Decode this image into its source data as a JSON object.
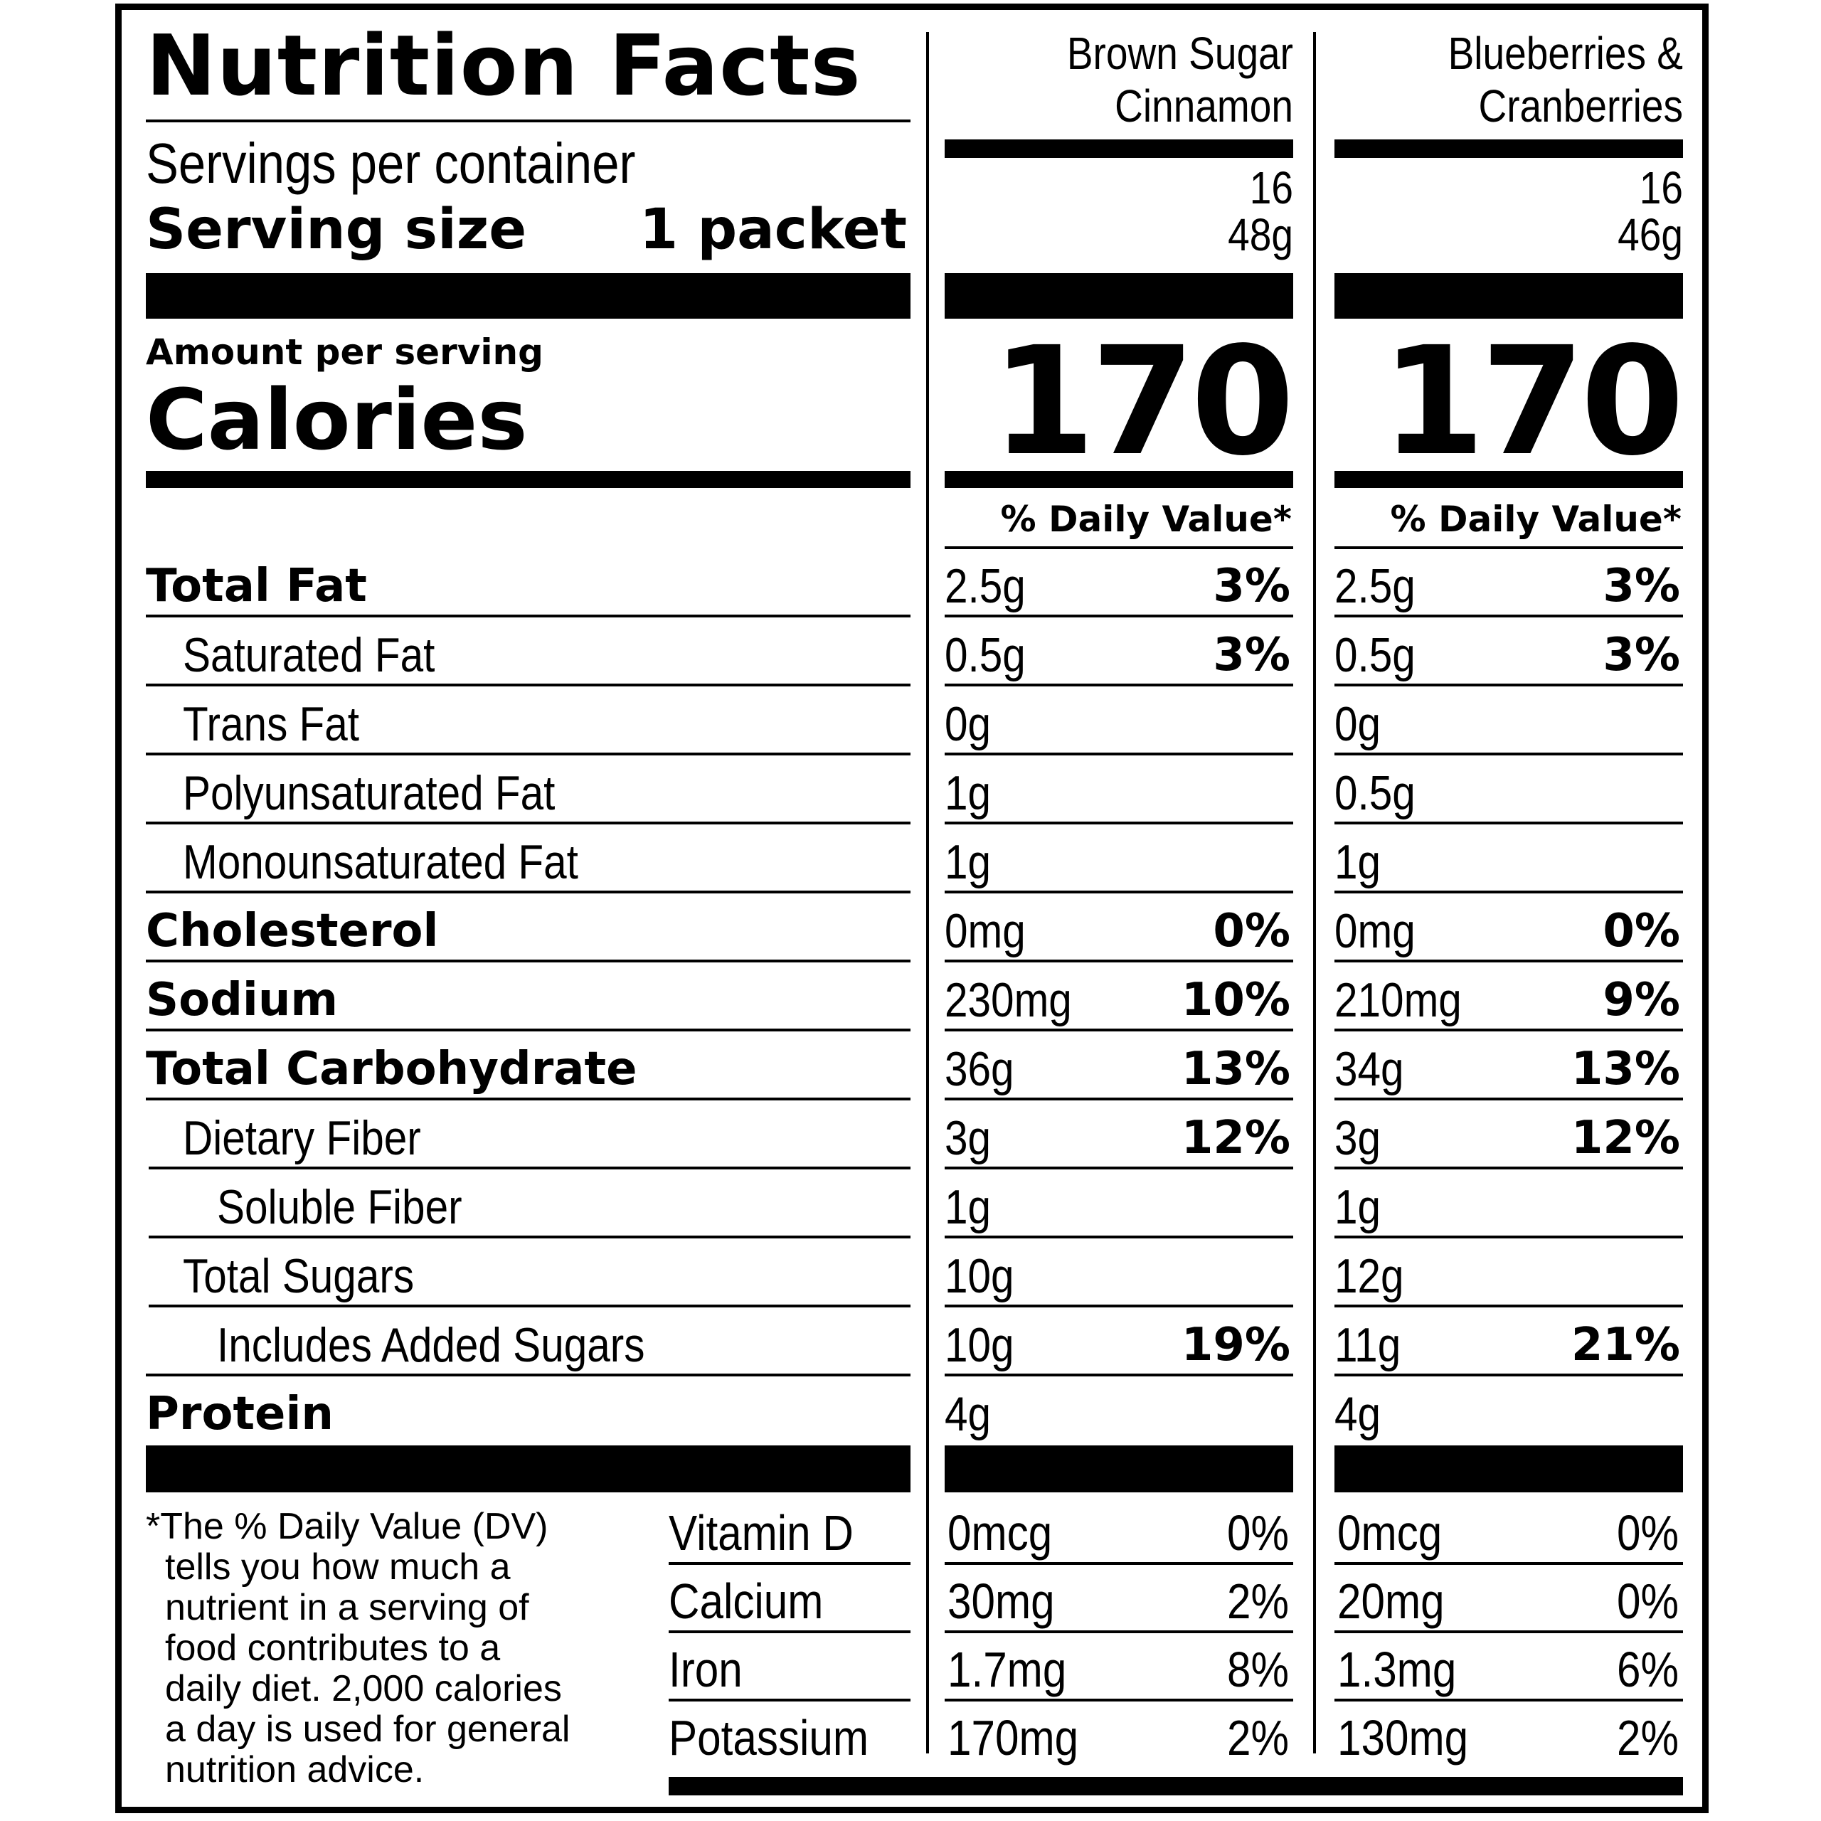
{
  "title": "Nutrition Facts",
  "servings_per_container_label": "Servings per container",
  "serving_size_label": "Serving size",
  "serving_size_value": "1 packet",
  "amount_per_serving_label": "Amount per serving",
  "calories_label": "Calories",
  "daily_value_header": "% Daily Value*",
  "products": [
    {
      "name_line1": "Brown Sugar",
      "name_line2": "Cinnamon",
      "servings": "16",
      "serving_size": "48g",
      "calories": "170",
      "nutrients": [
        {
          "amount": "2.5g",
          "dv": "3%"
        },
        {
          "amount": "0.5g",
          "dv": "3%"
        },
        {
          "amount": "0g",
          "dv": ""
        },
        {
          "amount": "1g",
          "dv": ""
        },
        {
          "amount": "1g",
          "dv": ""
        },
        {
          "amount": "0mg",
          "dv": "0%"
        },
        {
          "amount": "230mg",
          "dv": "10%"
        },
        {
          "amount": "36g",
          "dv": "13%"
        },
        {
          "amount": "3g",
          "dv": "12%"
        },
        {
          "amount": "1g",
          "dv": ""
        },
        {
          "amount": "10g",
          "dv": ""
        },
        {
          "amount": "10g",
          "dv": "19%"
        },
        {
          "amount": "4g",
          "dv": ""
        }
      ],
      "vitamins": [
        {
          "amount": "0mcg",
          "dv": "0%"
        },
        {
          "amount": "30mg",
          "dv": "2%"
        },
        {
          "amount": "1.7mg",
          "dv": "8%"
        },
        {
          "amount": "170mg",
          "dv": "2%"
        }
      ]
    },
    {
      "name_line1": "Blueberries &",
      "name_line2": "Cranberries",
      "servings": "16",
      "serving_size": "46g",
      "calories": "170",
      "nutrients": [
        {
          "amount": "2.5g",
          "dv": "3%"
        },
        {
          "amount": "0.5g",
          "dv": "3%"
        },
        {
          "amount": "0g",
          "dv": ""
        },
        {
          "amount": "0.5g",
          "dv": ""
        },
        {
          "amount": "1g",
          "dv": ""
        },
        {
          "amount": "0mg",
          "dv": "0%"
        },
        {
          "amount": "210mg",
          "dv": "9%"
        },
        {
          "amount": "34g",
          "dv": "13%"
        },
        {
          "amount": "3g",
          "dv": "12%"
        },
        {
          "amount": "1g",
          "dv": ""
        },
        {
          "amount": "12g",
          "dv": ""
        },
        {
          "amount": "11g",
          "dv": "21%"
        },
        {
          "amount": "4g",
          "dv": ""
        }
      ],
      "vitamins": [
        {
          "amount": "0mcg",
          "dv": "0%"
        },
        {
          "amount": "20mg",
          "dv": "0%"
        },
        {
          "amount": "1.3mg",
          "dv": "6%"
        },
        {
          "amount": "130mg",
          "dv": "2%"
        }
      ]
    }
  ],
  "nutrients": [
    {
      "key": "total-fat",
      "label": "Total Fat",
      "bold": true,
      "indent": 0
    },
    {
      "key": "saturated-fat",
      "label": "Saturated Fat",
      "bold": false,
      "indent": 1
    },
    {
      "key": "trans-fat",
      "label": "Trans Fat",
      "bold": false,
      "indent": 1
    },
    {
      "key": "polyunsaturated-fat",
      "label": "Polyunsaturated Fat",
      "bold": false,
      "indent": 1
    },
    {
      "key": "monounsaturated-fat",
      "label": "Monounsaturated Fat",
      "bold": false,
      "indent": 1
    },
    {
      "key": "cholesterol",
      "label": "Cholesterol",
      "bold": true,
      "indent": 0
    },
    {
      "key": "sodium",
      "label": "Sodium",
      "bold": true,
      "indent": 0
    },
    {
      "key": "total-carbohydrate",
      "label": "Total Carbohydrate",
      "bold": true,
      "indent": 0
    },
    {
      "key": "dietary-fiber",
      "label": "Dietary Fiber",
      "bold": false,
      "indent": 1
    },
    {
      "key": "soluble-fiber",
      "label": "Soluble Fiber",
      "bold": false,
      "indent": 2
    },
    {
      "key": "total-sugars",
      "label": "Total Sugars",
      "bold": false,
      "indent": 1
    },
    {
      "key": "added-sugars",
      "label": "Includes Added Sugars",
      "bold": false,
      "indent": 2
    },
    {
      "key": "protein",
      "label": "Protein",
      "bold": true,
      "indent": 0
    }
  ],
  "vitamins": [
    {
      "key": "vitamin-d",
      "label": "Vitamin D"
    },
    {
      "key": "calcium",
      "label": "Calcium"
    },
    {
      "key": "iron",
      "label": "Iron"
    },
    {
      "key": "potassium",
      "label": "Potassium"
    }
  ],
  "footnote_lines": [
    "*The % Daily Value (DV)",
    "tells you how much a",
    "nutrient in a serving of",
    "food contributes to a",
    "daily diet. 2,000 calories",
    "a day is used for general",
    "nutrition advice."
  ]
}
